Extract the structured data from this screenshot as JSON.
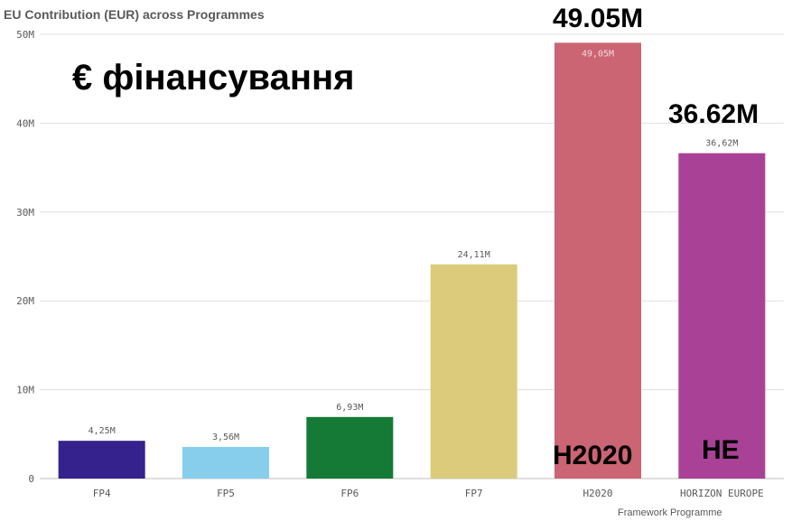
{
  "chart_data": {
    "type": "bar",
    "title": "EU Contribution (EUR) across Programmes",
    "xlabel": "Framework Programme",
    "ylabel": "",
    "ylim": [
      0,
      50
    ],
    "yticks": [
      0,
      10,
      20,
      30,
      40,
      50
    ],
    "ytick_labels": [
      "0",
      "10M",
      "20M",
      "30M",
      "40M",
      "50M"
    ],
    "categories": [
      "FP4",
      "FP5",
      "FP6",
      "FP7",
      "H2020",
      "HORIZON EUROPE"
    ],
    "values": [
      4.25,
      3.56,
      6.93,
      24.11,
      49.05,
      36.62
    ],
    "data_labels": [
      "4,25M",
      "3,56M",
      "6,93M",
      "24,11M",
      "49,05M",
      "36,62M"
    ],
    "colors": [
      "#35228d",
      "#87ceed",
      "#147a35",
      "#dccb7a",
      "#cb6473",
      "#a94297"
    ],
    "grid": true,
    "legend": "none"
  },
  "overlay": {
    "heading": "€ фінансування",
    "h2020_value": "49.05M",
    "he_value": "36.62M",
    "h2020_code": "H2020",
    "he_code": "HE"
  }
}
